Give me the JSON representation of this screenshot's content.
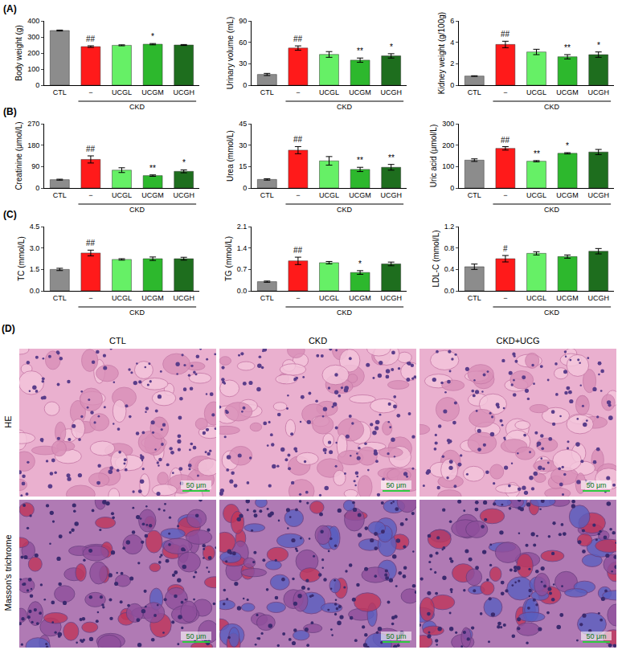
{
  "panel_labels": [
    "(A)",
    "(B)",
    "(C)"
  ],
  "chart_data": [
    {
      "type": "bar",
      "ylabel": "Body weight (g)",
      "categories": [
        "CTL",
        "−",
        "UCGL",
        "UCGM",
        "UCGH"
      ],
      "values": [
        340,
        240,
        248,
        255,
        250
      ],
      "errors": [
        3,
        5,
        3,
        4,
        3
      ],
      "significance": [
        null,
        "##",
        null,
        "*",
        null
      ],
      "colors": [
        "#8c8c8c",
        "#ff1a1a",
        "#66f066",
        "#2db82d",
        "#1e6e1e"
      ],
      "ylim": [
        0,
        400
      ],
      "yticks": [
        0,
        100,
        200,
        300,
        400
      ],
      "groups": [
        {
          "label": "CKD",
          "categories": [
            "−",
            "UCGL",
            "UCGM",
            "UCGH"
          ]
        }
      ]
    },
    {
      "type": "bar",
      "ylabel": "Urinary volume (mL)",
      "categories": [
        "CTL",
        "−",
        "UCGL",
        "UCGM",
        "UCGH"
      ],
      "values": [
        15,
        52,
        43,
        35,
        41
      ],
      "errors": [
        1.5,
        3,
        4,
        3,
        3
      ],
      "significance": [
        null,
        "##",
        null,
        "**",
        "*"
      ],
      "colors": [
        "#8c8c8c",
        "#ff1a1a",
        "#66f066",
        "#2db82d",
        "#1e6e1e"
      ],
      "ylim": [
        0,
        90
      ],
      "yticks": [
        0,
        30,
        60,
        90
      ],
      "groups": [
        {
          "label": "CKD",
          "categories": [
            "−",
            "UCGL",
            "UCGM",
            "UCGH"
          ]
        }
      ]
    },
    {
      "type": "bar",
      "ylabel": "Kidney weight (g/100g)",
      "categories": [
        "CTL",
        "−",
        "UCGL",
        "UCGM",
        "UCGH"
      ],
      "values": [
        0.85,
        3.8,
        3.1,
        2.65,
        2.85
      ],
      "errors": [
        0.03,
        0.3,
        0.25,
        0.2,
        0.25
      ],
      "significance": [
        null,
        "##",
        null,
        "**",
        "*"
      ],
      "colors": [
        "#8c8c8c",
        "#ff1a1a",
        "#66f066",
        "#2db82d",
        "#1e6e1e"
      ],
      "ylim": [
        0,
        6
      ],
      "yticks": [
        0,
        2,
        4,
        6
      ],
      "groups": [
        {
          "label": "CKD",
          "categories": [
            "−",
            "UCGL",
            "UCGM",
            "UCGH"
          ]
        }
      ]
    },
    {
      "type": "bar",
      "ylabel": "Creatinine (μmol/L)",
      "categories": [
        "CTL",
        "−",
        "UCGL",
        "UCGM",
        "UCGH"
      ],
      "values": [
        35,
        120,
        75,
        52,
        70
      ],
      "errors": [
        2,
        15,
        10,
        3,
        6
      ],
      "significance": [
        null,
        "##",
        null,
        "**",
        "*"
      ],
      "colors": [
        "#8c8c8c",
        "#ff1a1a",
        "#66f066",
        "#2db82d",
        "#1e6e1e"
      ],
      "ylim": [
        0,
        270
      ],
      "yticks": [
        0,
        90,
        180,
        270
      ],
      "groups": [
        {
          "label": "CKD",
          "categories": [
            "−",
            "UCGL",
            "UCGM",
            "UCGH"
          ]
        }
      ]
    },
    {
      "type": "bar",
      "ylabel": "Urea (mmol/L)",
      "categories": [
        "CTL",
        "−",
        "UCGL",
        "UCGM",
        "UCGH"
      ],
      "values": [
        6,
        26.5,
        19,
        13,
        14.5
      ],
      "errors": [
        0.5,
        2.5,
        3,
        1.5,
        2
      ],
      "significance": [
        null,
        "##",
        null,
        "**",
        "**"
      ],
      "colors": [
        "#8c8c8c",
        "#ff1a1a",
        "#66f066",
        "#2db82d",
        "#1e6e1e"
      ],
      "ylim": [
        0,
        45
      ],
      "yticks": [
        0,
        15,
        30,
        45
      ],
      "groups": [
        {
          "label": "CKD",
          "categories": [
            "−",
            "UCGL",
            "UCGM",
            "UCGH"
          ]
        }
      ]
    },
    {
      "type": "bar",
      "ylabel": "Uric acid (μmol/L)",
      "categories": [
        "CTL",
        "−",
        "UCGL",
        "UCGM",
        "UCGH"
      ],
      "values": [
        130,
        185,
        125,
        162,
        168
      ],
      "errors": [
        6,
        8,
        3,
        3,
        12
      ],
      "significance": [
        null,
        "##",
        "**",
        "*",
        null
      ],
      "colors": [
        "#8c8c8c",
        "#ff1a1a",
        "#66f066",
        "#2db82d",
        "#1e6e1e"
      ],
      "ylim": [
        0,
        300
      ],
      "yticks": [
        0,
        100,
        200,
        300
      ],
      "groups": [
        {
          "label": "CKD",
          "categories": [
            "−",
            "UCGL",
            "UCGM",
            "UCGH"
          ]
        }
      ]
    },
    {
      "type": "bar",
      "ylabel": "TC (mmol/L)",
      "categories": [
        "CTL",
        "−",
        "UCGL",
        "UCGM",
        "UCGH"
      ],
      "values": [
        1.5,
        2.65,
        2.2,
        2.25,
        2.25
      ],
      "errors": [
        0.08,
        0.2,
        0.05,
        0.12,
        0.1
      ],
      "significance": [
        null,
        "##",
        null,
        null,
        null
      ],
      "colors": [
        "#8c8c8c",
        "#ff1a1a",
        "#66f066",
        "#2db82d",
        "#1e6e1e"
      ],
      "ylim": [
        0,
        4.5
      ],
      "yticks": [
        {
          "value": 0,
          "label": "0.0"
        },
        1.5,
        {
          "value": 3,
          "label": "3.0"
        },
        4.5
      ],
      "groups": [
        {
          "label": "CKD",
          "categories": [
            "−",
            "UCGL",
            "UCGM",
            "UCGH"
          ]
        }
      ]
    },
    {
      "type": "bar",
      "ylabel": "TG (mmol/L)",
      "categories": [
        "CTL",
        "−",
        "UCGL",
        "UCGM",
        "UCGH"
      ],
      "values": [
        0.3,
        0.98,
        0.92,
        0.6,
        0.88
      ],
      "errors": [
        0.02,
        0.12,
        0.04,
        0.06,
        0.06
      ],
      "significance": [
        null,
        "##",
        null,
        "*",
        null
      ],
      "colors": [
        "#8c8c8c",
        "#ff1a1a",
        "#66f066",
        "#2db82d",
        "#1e6e1e"
      ],
      "ylim": [
        0,
        2.1
      ],
      "yticks": [
        {
          "value": 0,
          "label": "0.0"
        },
        0.7,
        1.4,
        2.1
      ],
      "groups": [
        {
          "label": "CKD",
          "categories": [
            "−",
            "UCGL",
            "UCGM",
            "UCGH"
          ]
        }
      ]
    },
    {
      "type": "bar",
      "ylabel": "LDL-C (mmol/L)",
      "categories": [
        "CTL",
        "−",
        "UCGL",
        "UCGM",
        "UCGH"
      ],
      "values": [
        0.45,
        0.6,
        0.7,
        0.64,
        0.74
      ],
      "errors": [
        0.05,
        0.06,
        0.03,
        0.03,
        0.05
      ],
      "significance": [
        null,
        "#",
        null,
        null,
        null
      ],
      "colors": [
        "#8c8c8c",
        "#ff1a1a",
        "#66f066",
        "#2db82d",
        "#1e6e1e"
      ],
      "ylim": [
        0,
        1.2
      ],
      "yticks": [
        {
          "value": 0,
          "label": "0.0"
        },
        0.4,
        0.8,
        1.2
      ],
      "groups": [
        {
          "label": "CKD",
          "categories": [
            "−",
            "UCGL",
            "UCGM",
            "UCGH"
          ]
        }
      ]
    }
  ],
  "histology": {
    "label": "(D)",
    "columns": [
      "CTL",
      "CKD",
      "CKD+UCG"
    ],
    "rows": [
      "HE",
      "Masson's trichrome"
    ],
    "scale_bar": "50 μm"
  }
}
